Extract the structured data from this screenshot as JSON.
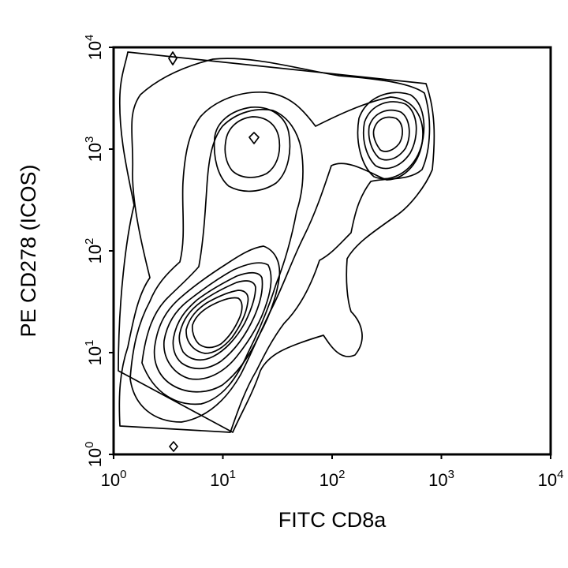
{
  "chart_data": {
    "type": "contour",
    "title": "",
    "xlabel": "FITC CD8a",
    "ylabel": "PE CD278 (ICOS)",
    "xscale": "log",
    "yscale": "log",
    "xlim": [
      1,
      10000
    ],
    "ylim": [
      1,
      10000
    ],
    "x_ticks": [
      {
        "value": 1,
        "base": "10",
        "exp": "0"
      },
      {
        "value": 10,
        "base": "10",
        "exp": "1"
      },
      {
        "value": 100,
        "base": "10",
        "exp": "2"
      },
      {
        "value": 1000,
        "base": "10",
        "exp": "3"
      },
      {
        "value": 10000,
        "base": "10",
        "exp": "4"
      }
    ],
    "y_ticks": [
      {
        "value": 1,
        "base": "10",
        "exp": "0"
      },
      {
        "value": 10,
        "base": "10",
        "exp": "1"
      },
      {
        "value": 100,
        "base": "10",
        "exp": "2"
      },
      {
        "value": 1000,
        "base": "10",
        "exp": "3"
      },
      {
        "value": 10000,
        "base": "10",
        "exp": "4"
      }
    ],
    "grid": false,
    "legend": "none",
    "line_color": "#000000",
    "populations": [
      {
        "label": "",
        "center_x": 6,
        "center_y": 15,
        "levels": 9
      },
      {
        "label": "",
        "center_x": 19,
        "center_y": 1400,
        "levels": 3
      },
      {
        "label": "",
        "center_x": 350,
        "center_y": 1500,
        "levels": 4
      }
    ]
  }
}
